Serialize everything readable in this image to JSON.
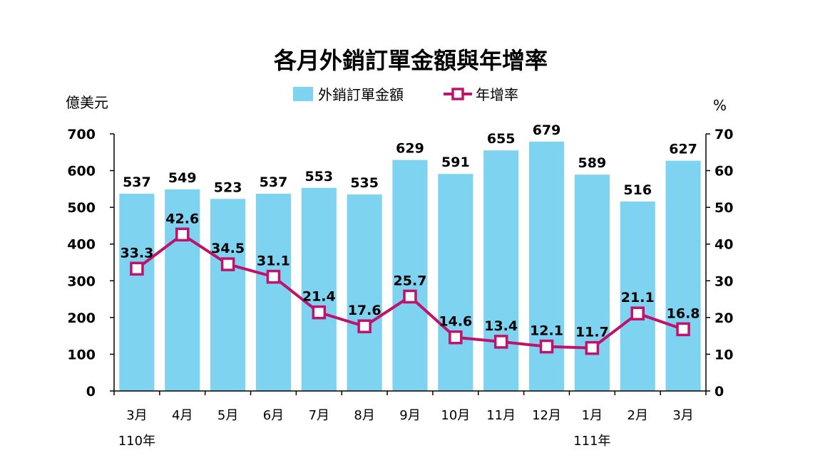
{
  "chart_data": {
    "type": "bar",
    "title": "各月外銷訂單金額與年增率",
    "categories": [
      "3月",
      "4月",
      "5月",
      "6月",
      "7月",
      "8月",
      "9月",
      "10月",
      "11月",
      "12月",
      "1月",
      "2月",
      "3月"
    ],
    "year_labels": [
      {
        "index": 0,
        "label": "110年"
      },
      {
        "index": 10,
        "label": "111年"
      }
    ],
    "left_axis": {
      "label": "億美元",
      "ylim": [
        0,
        700
      ],
      "ticks": [
        0,
        100,
        200,
        300,
        400,
        500,
        600,
        700
      ]
    },
    "right_axis": {
      "label": "%",
      "ylim": [
        0,
        70
      ],
      "ticks": [
        0,
        10,
        20,
        30,
        40,
        50,
        60,
        70
      ]
    },
    "series": [
      {
        "name": "外銷訂單金額",
        "type": "bar",
        "axis": "left",
        "color": "#7dd3f0",
        "values": [
          537,
          549,
          523,
          537,
          553,
          535,
          629,
          591,
          655,
          679,
          589,
          516,
          627
        ]
      },
      {
        "name": "年增率",
        "type": "line",
        "axis": "right",
        "color": "#c0126b",
        "values": [
          33.3,
          42.6,
          34.5,
          31.1,
          21.4,
          17.6,
          25.7,
          14.6,
          13.4,
          12.1,
          11.7,
          21.1,
          16.8
        ]
      }
    ],
    "legend_position": "top",
    "grid": false
  }
}
